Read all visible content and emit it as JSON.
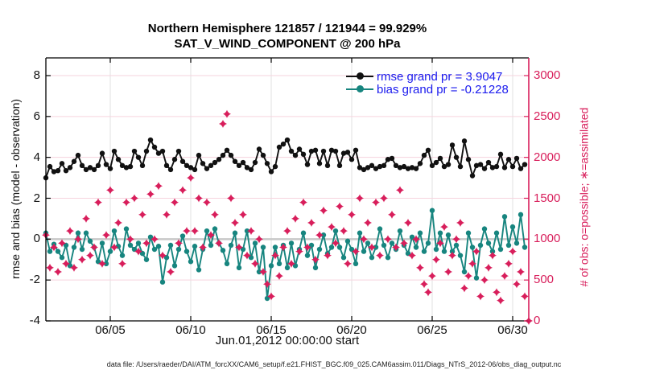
{
  "figure": {
    "title_line1": "Northern Hemisphere 121857 / 121944 = 99.929%",
    "title_line2": "SAT_V_WIND_COMPONENT @ 200 hPa",
    "footer": "data file: /Users/raeder/DAI/ATM_forcXX/CAM6_setup/f.e21.FHIST_BGC.f09_025.CAM6assim.011/Diags_NTrS_2012-06/obs_diag_output.nc"
  },
  "legend": {
    "text_color": "#1A1AEE",
    "entries": [
      {
        "label": "rmse grand pr = 3.9047",
        "color": "#111111"
      },
      {
        "label": "bias grand pr = -0.21228",
        "color": "#17857F"
      }
    ]
  },
  "colors": {
    "rmse": "#111111",
    "bias": "#17857F",
    "obs": "#D81E5B",
    "grid_h": "#F6D3DE",
    "grid_v": "#E2E2E2",
    "zero_line": "#C8C8C8",
    "axis_black": "#000000"
  },
  "chart_data": {
    "type": "line",
    "title": "Northern Hemisphere 121857 / 121944 = 99.929%",
    "subtitle": "SAT_V_WIND_COMPONENT @ 200 hPa",
    "x_axis": {
      "label": "Jun.01,2012 00:00:00 start",
      "start_day": 1.0,
      "step_days": 0.25,
      "range_days": [
        1,
        31
      ],
      "tick_days": [
        5,
        10,
        15,
        20,
        25,
        30
      ],
      "tick_labels": [
        "06/05",
        "06/10",
        "06/15",
        "06/20",
        "06/25",
        "06/30"
      ]
    },
    "y_left": {
      "label": "rmse and bias (model - observation)",
      "ticks": [
        8,
        6,
        4,
        2,
        0,
        -2,
        -4
      ],
      "range": [
        -4,
        8.87
      ],
      "grid": true,
      "zero_reference_line": 0
    },
    "y_right": {
      "label": "# of obs: o=possible; ∗=assimilated",
      "ticks": [
        3000,
        2500,
        2000,
        1500,
        1000,
        500,
        0
      ],
      "range": [
        0,
        3216
      ],
      "color": "#D81E5B"
    },
    "legend_position": "top-right-inside",
    "series": [
      {
        "name": "rmse",
        "axis": "left",
        "marker": "circle",
        "line": true,
        "color": "#111111",
        "grand_pr": 3.9047,
        "values": [
          3.0,
          3.55,
          3.3,
          3.35,
          3.7,
          3.35,
          3.5,
          3.8,
          4.1,
          3.6,
          3.4,
          3.5,
          3.4,
          3.6,
          4.2,
          3.65,
          3.45,
          4.3,
          3.9,
          3.6,
          3.5,
          3.55,
          4.3,
          4.0,
          3.6,
          4.3,
          4.85,
          4.5,
          4.2,
          4.3,
          3.6,
          3.4,
          3.9,
          4.3,
          3.8,
          3.6,
          3.5,
          3.4,
          4.1,
          3.7,
          3.45,
          3.6,
          3.75,
          3.9,
          4.1,
          4.35,
          4.1,
          3.8,
          3.6,
          3.75,
          3.5,
          3.4,
          3.75,
          4.4,
          4.1,
          3.7,
          3.3,
          3.55,
          4.5,
          4.65,
          4.85,
          4.3,
          4.1,
          4.4,
          4.15,
          3.65,
          4.3,
          4.35,
          3.7,
          4.3,
          3.6,
          4.35,
          4.3,
          3.6,
          4.2,
          4.25,
          3.9,
          4.35,
          3.5,
          3.4,
          3.5,
          3.6,
          3.45,
          3.55,
          3.6,
          3.9,
          3.95,
          3.6,
          3.5,
          3.55,
          3.45,
          3.5,
          3.45,
          3.7,
          4.1,
          4.35,
          3.6,
          3.75,
          3.95,
          3.55,
          3.65,
          4.6,
          4.0,
          3.55,
          4.8,
          3.9,
          3.1,
          3.6,
          3.65,
          3.45,
          3.75,
          3.5,
          3.55,
          4.15,
          3.5,
          3.9,
          3.55,
          3.95,
          3.45,
          3.65
        ]
      },
      {
        "name": "bias",
        "axis": "left",
        "marker": "circle",
        "line": true,
        "color": "#17857F",
        "grand_pr": -0.21228,
        "values": [
          0.3,
          -0.6,
          -0.25,
          -0.6,
          -0.9,
          -0.3,
          -1.3,
          -0.4,
          0.3,
          -0.5,
          0.3,
          -0.1,
          -0.4,
          -1.1,
          -0.2,
          -1.2,
          -0.6,
          0.4,
          -0.35,
          -0.8,
          0.5,
          -0.3,
          -0.5,
          -0.2,
          -0.7,
          -1.0,
          0.1,
          -0.5,
          -0.35,
          -2.1,
          -0.9,
          -0.3,
          -1.3,
          -0.5,
          0.15,
          -0.6,
          -1.1,
          -0.35,
          -1.5,
          -0.5,
          0.4,
          -0.3,
          0.5,
          -0.2,
          -0.55,
          -1.2,
          -0.3,
          0.3,
          -1.4,
          -0.5,
          0.4,
          -0.9,
          -0.2,
          -1.6,
          -0.4,
          -2.9,
          -1.3,
          -0.4,
          -1.2,
          -0.3,
          -1.4,
          -0.2,
          -1.3,
          -0.5,
          0.3,
          -0.8,
          -0.3,
          -1.4,
          -0.5,
          0.2,
          -0.7,
          -0.4,
          0.4,
          -0.4,
          -0.9,
          -0.1,
          -0.5,
          -1.2,
          0.3,
          -0.6,
          -0.2,
          -0.9,
          -0.4,
          0.5,
          -0.3,
          -0.9,
          -0.2,
          -0.5,
          0.4,
          -0.3,
          -0.7,
          0.1,
          -0.4,
          0.3,
          -0.6,
          -0.2,
          1.4,
          -0.5,
          0.3,
          -0.6,
          0.2,
          -0.6,
          -0.3,
          -0.8,
          -1.6,
          0.3,
          -0.4,
          -1.9,
          -0.3,
          0.5,
          -0.2,
          -0.6,
          0.3,
          -0.5,
          1.1,
          -0.3,
          0.6,
          -0.2,
          1.2,
          -0.4
        ]
      },
      {
        "name": "obs_count_assimilated",
        "axis": "right",
        "marker": "star4",
        "line": false,
        "color": "#D81E5B",
        "values": [
          1050,
          650,
          900,
          600,
          950,
          700,
          1100,
          650,
          1000,
          750,
          1250,
          800,
          900,
          1450,
          700,
          1050,
          1600,
          900,
          1200,
          700,
          1450,
          1000,
          1500,
          850,
          1300,
          950,
          1550,
          1000,
          1650,
          800,
          1300,
          600,
          1450,
          950,
          1600,
          1100,
          1750,
          1100,
          1500,
          900,
          1450,
          1050,
          1300,
          950,
          2410,
          2530,
          1500,
          1200,
          900,
          1300,
          800,
          1100,
          700,
          1000,
          600,
          450,
          300,
          800,
          550,
          900,
          1100,
          700,
          1250,
          850,
          1450,
          900,
          1200,
          750,
          1050,
          1350,
          800,
          1150,
          950,
          1400,
          1100,
          700,
          1300,
          850,
          1500,
          1000,
          1200,
          900,
          1450,
          800,
          1500,
          1000,
          1300,
          900,
          1600,
          950,
          1200,
          800,
          1000,
          650,
          450,
          350,
          550,
          750,
          950,
          1150,
          600,
          800,
          1000,
          1200,
          400,
          550,
          700,
          850,
          300,
          500,
          650,
          800,
          350,
          250,
          550,
          700,
          850,
          450,
          600,
          300,
          0
        ]
      }
    ]
  }
}
